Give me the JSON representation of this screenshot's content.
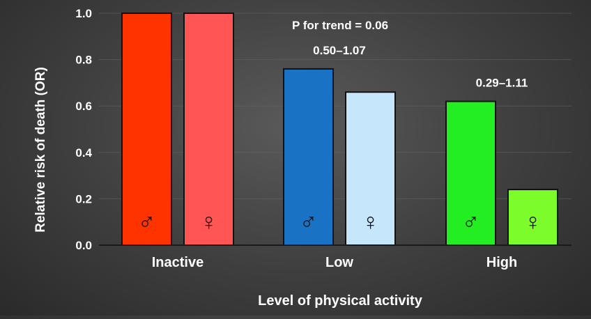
{
  "chart_data": {
    "type": "bar",
    "title": "",
    "xlabel": "Level of physical activity",
    "ylabel": "Relative risk of death (OR)",
    "ylim": [
      0,
      1.0
    ],
    "yticks": [
      "0.0",
      "0.2",
      "0.4",
      "0.6",
      "0.8",
      "1.0"
    ],
    "grid": true,
    "categories": [
      "Inactive",
      "Low",
      "High"
    ],
    "series": [
      {
        "sex_symbol": "♂",
        "values": [
          1.0,
          0.76,
          0.62
        ],
        "colors": [
          "#ff3300",
          "#1a72c4",
          "#22ee22"
        ]
      },
      {
        "sex_symbol": "♀",
        "values": [
          1.0,
          0.66,
          0.24
        ],
        "colors": [
          "#ff5555",
          "#c6e6fb",
          "#7dfc2c"
        ]
      }
    ],
    "annotations": [
      {
        "text": "P for trend = 0.06"
      },
      {
        "text": "0.50–1.07",
        "category": "Low"
      },
      {
        "text": "0.29–1.11",
        "category": "High"
      }
    ]
  }
}
